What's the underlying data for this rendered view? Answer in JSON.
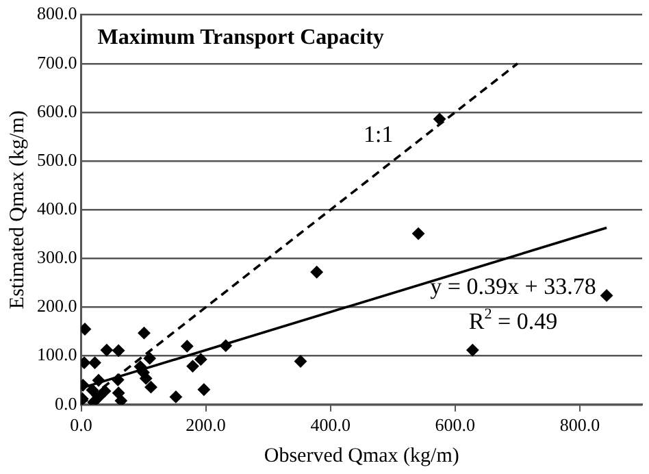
{
  "chart_data": {
    "type": "scatter",
    "title": "Maximum Transport Capacity",
    "xlabel": "Observed Qmax (kg/m)",
    "ylabel": "Estimated Qmax (kg/m)",
    "xlim": [
      0,
      900
    ],
    "xticks": [
      {
        "value": 0,
        "label": "0.0"
      },
      {
        "value": 200,
        "label": "200.0"
      },
      {
        "value": 400,
        "label": "400.0"
      },
      {
        "value": 600,
        "label": "600.0"
      },
      {
        "value": 800,
        "label": "800.0"
      }
    ],
    "ylim": [
      0,
      800
    ],
    "yticks": [
      {
        "value": 0,
        "label": "0.0"
      },
      {
        "value": 100,
        "label": "100.0"
      },
      {
        "value": 200,
        "label": "200.0"
      },
      {
        "value": 300,
        "label": "300.0"
      },
      {
        "value": 400,
        "label": "400.0"
      },
      {
        "value": 500,
        "label": "500.0"
      },
      {
        "value": 600,
        "label": "600.0"
      },
      {
        "value": 700,
        "label": "700.0"
      },
      {
        "value": 800,
        "label": "800.0"
      }
    ],
    "grid": "y",
    "marker": "diamond",
    "series": [
      {
        "color": "#000000",
        "x": [
          6,
          5,
          22,
          3,
          41,
          60,
          101,
          110,
          95,
          100,
          104,
          112,
          59,
          60,
          64,
          2,
          18,
          20,
          30,
          28,
          38,
          152,
          170,
          179,
          192,
          197,
          232,
          352,
          378,
          541,
          628,
          843,
          575
        ],
        "values": [
          155,
          86,
          86,
          40,
          112,
          111,
          147,
          95,
          78,
          66,
          54,
          36,
          51,
          24,
          8,
          12,
          30,
          5,
          18,
          50,
          28,
          16,
          120,
          79,
          93,
          31,
          121,
          89,
          272,
          351,
          112,
          224,
          586
        ]
      },
      {
        "type": "line",
        "color": "#000000",
        "marker": "none",
        "line_style": "solid",
        "x": [
          0,
          843
        ],
        "values": [
          34,
          363
        ]
      },
      {
        "type": "line",
        "color": "#000000",
        "marker": "none",
        "line_style": "dashed",
        "x": [
          0,
          700
        ],
        "values": [
          0,
          700
        ]
      }
    ],
    "annotations": [
      "1:1",
      "y = 0.39x + 33.78",
      "R$^{2}$ = 0.49"
    ]
  }
}
